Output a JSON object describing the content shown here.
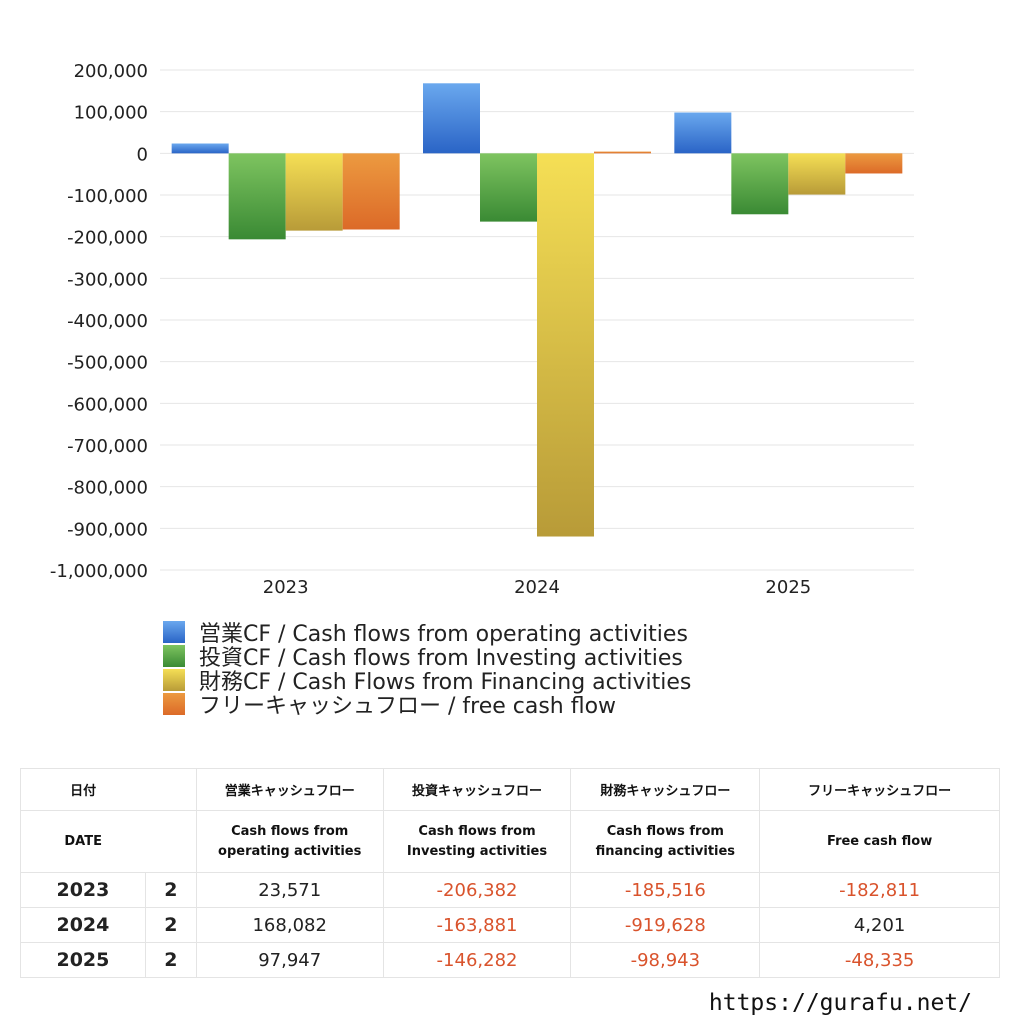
{
  "chart_data": {
    "type": "bar",
    "categories": [
      "2023",
      "2024",
      "2025"
    ],
    "series": [
      {
        "name": "営業CF / Cash flows from operating activities",
        "values": [
          23571,
          168082,
          97947
        ],
        "color_top": "#6aa8ee",
        "color_bottom": "#2a64c6"
      },
      {
        "name": "投資CF / Cash flows from Investing activities",
        "values": [
          -206382,
          -163881,
          -146282
        ],
        "color_top": "#7ec460",
        "color_bottom": "#3a8a34"
      },
      {
        "name": "財務CF / Cash Flows from Financing activities",
        "values": [
          -185516,
          -919628,
          -98943
        ],
        "color_top": "#f5df55",
        "color_bottom": "#b89b38"
      },
      {
        "name": "フリーキャッシュフロー / free cash flow",
        "values": [
          -182811,
          4201,
          -48335
        ],
        "color_top": "#ec9a40",
        "color_bottom": "#dc6a28"
      }
    ],
    "ylim": [
      -1000000,
      200000
    ],
    "yticks": [
      "200,000",
      "100,000",
      "0",
      "-100,000",
      "-200,000",
      "-300,000",
      "-400,000",
      "-500,000",
      "-600,000",
      "-700,000",
      "-800,000",
      "-900,000",
      "-1,000,000"
    ],
    "grid": true,
    "legend_position": "bottom-left"
  },
  "table": {
    "headers_jp": [
      "日付",
      "営業キャッシュフロー",
      "投資キャッシュフロー",
      "財務キャッシュフロー",
      "フリーキャッシュフロー"
    ],
    "headers_en": [
      "DATE",
      "Cash flows from operating activities",
      "Cash flows from Investing activities",
      "Cash flows from financing activities",
      "Free cash flow"
    ],
    "headers_en_lines": [
      [
        "DATE"
      ],
      [
        "Cash flows from",
        "operating activities"
      ],
      [
        "Cash flows from",
        "Investing activities"
      ],
      [
        "Cash flows from",
        "financing activities"
      ],
      [
        "Free cash flow"
      ]
    ],
    "rows": [
      {
        "year": "2023",
        "q": "2",
        "operating": "23,571",
        "investing": "-206,382",
        "financing": "-185,516",
        "free": "-182,811"
      },
      {
        "year": "2024",
        "q": "2",
        "operating": "168,082",
        "investing": "-163,881",
        "financing": "-919,628",
        "free": "4,201"
      },
      {
        "year": "2025",
        "q": "2",
        "operating": "97,947",
        "investing": "-146,282",
        "financing": "-98,943",
        "free": "-48,335"
      }
    ]
  },
  "footer": {
    "url": "https://gurafu.net/"
  }
}
